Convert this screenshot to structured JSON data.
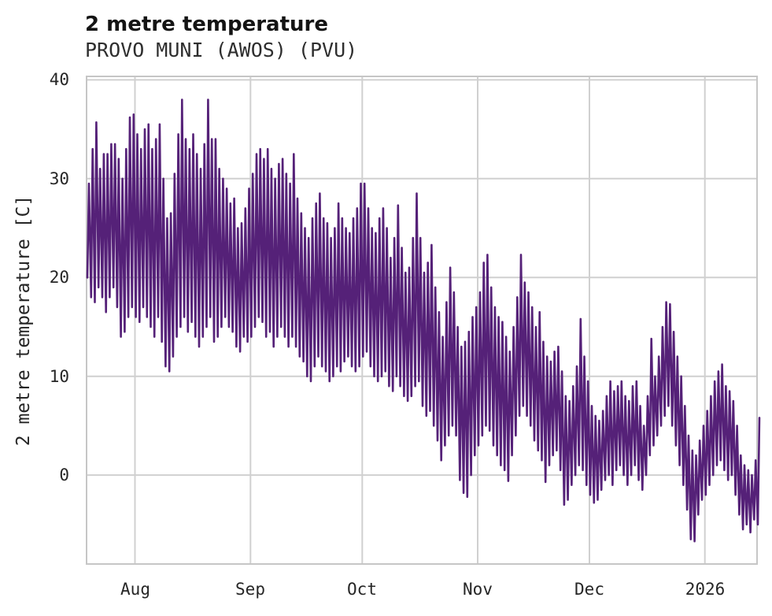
{
  "header": {
    "title": "2 metre temperature",
    "subtitle": "PROVO MUNI (AWOS) (PVU)"
  },
  "chart_data": {
    "type": "line",
    "title": "2 metre temperature",
    "subtitle": "PROVO MUNI (AWOS) (PVU)",
    "xlabel": "",
    "ylabel": "2 metre temperature [C]",
    "series_name": "2 metre temperature",
    "line_color": "#552178",
    "grid_color": "#d0d0d0",
    "spine_color": "#c6c6c6",
    "background_color": "#ffffff",
    "grid": true,
    "legend": false,
    "ylim": [
      -9,
      40.35
    ],
    "yticks": [
      0,
      10,
      20,
      30,
      40
    ],
    "ytick_labels": [
      "0",
      "10",
      "20",
      "30",
      "40"
    ],
    "x_start_date": "2025-07-19",
    "x_end_date": "2026-01-15",
    "x_total_days": 181,
    "x_tick_days": [
      13,
      44,
      74,
      105,
      135,
      166
    ],
    "x_tick_labels": [
      "Aug",
      "Sep",
      "Oct",
      "Nov",
      "Dec",
      "2026"
    ],
    "units": "C",
    "daily": {
      "note": "per-day minimum and maximum 2 metre temperature [C], one entry per day from 2025-07-19 to 2026-01-15; the plotted line is the diurnal cycle oscillating between each day's min and max",
      "min": [
        20,
        18,
        17.5,
        19,
        18,
        16.5,
        18,
        19,
        17,
        14,
        14.5,
        16,
        17,
        16,
        15.5,
        17,
        16,
        15,
        14,
        16,
        13.5,
        11,
        10.5,
        12,
        14,
        15,
        16,
        14.5,
        15.5,
        14,
        13,
        14,
        15,
        16,
        13.5,
        14,
        15,
        16,
        15,
        14.5,
        13,
        12.5,
        14,
        13.5,
        14,
        15,
        16,
        15.5,
        14,
        14.5,
        13,
        14,
        15,
        14,
        13,
        14,
        13,
        12,
        11.5,
        10,
        9.5,
        11,
        12,
        11,
        10.5,
        9.5,
        10,
        11,
        10.5,
        11.5,
        12,
        11,
        10.5,
        11,
        12,
        12.5,
        11,
        10,
        9.5,
        10,
        10.5,
        9,
        8.5,
        10,
        9,
        8,
        7.5,
        8,
        9,
        9.5,
        7,
        6,
        6.5,
        5,
        3.5,
        1.5,
        3,
        4,
        5,
        4,
        -0.5,
        -1.8,
        -2.2,
        0,
        2,
        3,
        4,
        5,
        4.5,
        3,
        2,
        1,
        0.5,
        -0.6,
        2,
        4,
        6,
        7,
        6,
        5,
        3.5,
        2.5,
        1.5,
        -0.7,
        1,
        2,
        2.5,
        0.5,
        -3,
        -2.5,
        -1,
        0,
        1,
        0.5,
        -1,
        -2,
        -2.8,
        -2.5,
        -1.5,
        -0.5,
        0,
        -1,
        0.5,
        1,
        0,
        -1,
        0,
        1,
        -0.5,
        -1.5,
        0,
        2,
        3,
        4,
        5,
        6,
        7,
        5,
        3,
        1,
        -1,
        -3.5,
        -6.5,
        -6.7,
        -4,
        -2.5,
        -2,
        -1,
        0,
        1,
        1.5,
        0.5,
        -0.5,
        0,
        -2,
        -4,
        -5.5,
        -5,
        -5.8,
        -4.5,
        -5
      ],
      "max": [
        29.5,
        33,
        35.7,
        31,
        32.5,
        32.5,
        33.5,
        33.5,
        32,
        30,
        33,
        36.2,
        36.5,
        34.5,
        33,
        35,
        35.5,
        33,
        34,
        35.5,
        30,
        26,
        26.5,
        30.5,
        34.5,
        38,
        34,
        33,
        34.5,
        32.5,
        31,
        33.5,
        38,
        34,
        34,
        31,
        30,
        29,
        27.5,
        28,
        25,
        25.5,
        27,
        29,
        30.5,
        32.5,
        33,
        32,
        33,
        31,
        30,
        31.5,
        32,
        30.5,
        29.5,
        32.5,
        28,
        26.5,
        25,
        24,
        26,
        27.5,
        28.5,
        26,
        25.5,
        24,
        25,
        27.5,
        26,
        25,
        24.5,
        26,
        27,
        29.5,
        29.5,
        27,
        25,
        24.5,
        26,
        27,
        25,
        22,
        24,
        27.3,
        23,
        20.5,
        21,
        24,
        28.5,
        24,
        20.5,
        21.5,
        23.3,
        19,
        16.5,
        14,
        17.5,
        21,
        18.5,
        15,
        13,
        13.5,
        14.5,
        16,
        17,
        18.5,
        21.5,
        22.3,
        19,
        17,
        16,
        15.5,
        14,
        12.5,
        15,
        18,
        22.3,
        19.5,
        18.5,
        17,
        15,
        16.5,
        13.5,
        12,
        11.5,
        12.5,
        13,
        10.5,
        8,
        7.5,
        9,
        11,
        15.8,
        12,
        9.5,
        7,
        6,
        5.5,
        6.5,
        8,
        9.5,
        8.5,
        9,
        9.5,
        8,
        7.5,
        9,
        9.5,
        7,
        5,
        8,
        13.8,
        10,
        12,
        15,
        17.5,
        17.3,
        14.5,
        12,
        10,
        7,
        4,
        2.5,
        2,
        3.5,
        5,
        6.5,
        8,
        9.5,
        10.5,
        11.2,
        9,
        8.5,
        7.5,
        5,
        2,
        1,
        0.5,
        0,
        1.5,
        5.8
      ]
    }
  }
}
